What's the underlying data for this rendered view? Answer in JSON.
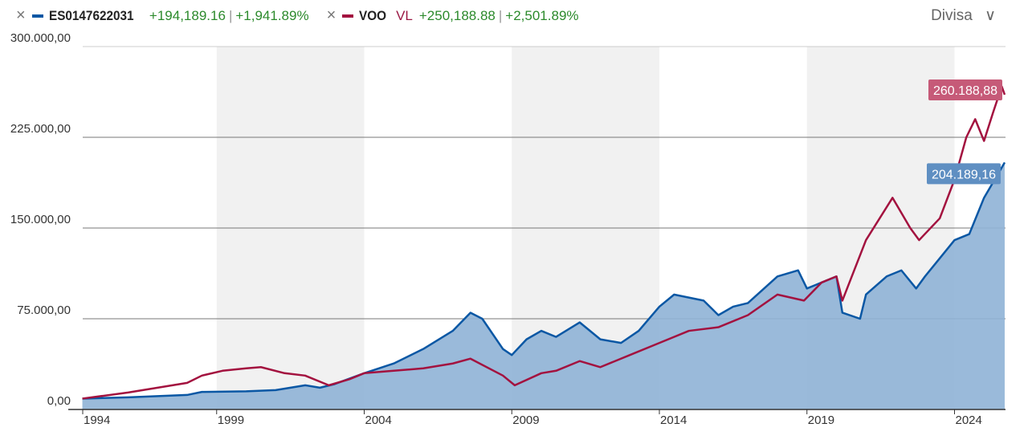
{
  "legend": [
    {
      "remove_icon": "×",
      "name": "ES0147622031",
      "suffix": "",
      "change": "+194,189.16",
      "pct": "+1,941.89%",
      "color": "#0a57a4"
    },
    {
      "remove_icon": "×",
      "name": "VOO",
      "suffix": "VL",
      "change": "+250,188.88",
      "pct": "+2,501.89%",
      "color": "#a3123f"
    }
  ],
  "currency_button": "Divisa",
  "chart_data": {
    "type": "line",
    "xlabel": "",
    "ylabel": "",
    "xlim": [
      1994.0,
      2025.7
    ],
    "ylim": [
      0,
      300000
    ],
    "yticks": [
      {
        "v": 0,
        "label": "0,00"
      },
      {
        "v": 75000,
        "label": "75.000,00"
      },
      {
        "v": 150000,
        "label": "150.000,00"
      },
      {
        "v": 225000,
        "label": "225.000,00"
      },
      {
        "v": 300000,
        "label": "300.000,00"
      }
    ],
    "xticks": [
      {
        "v": 1994,
        "label": "1994"
      },
      {
        "v": 1999,
        "label": "1999"
      },
      {
        "v": 2004,
        "label": "2004"
      },
      {
        "v": 2009,
        "label": "2009"
      },
      {
        "v": 2014,
        "label": "2014"
      },
      {
        "v": 2019,
        "label": "2019"
      },
      {
        "v": 2024,
        "label": "2024"
      }
    ],
    "shaded_bands": [
      [
        1999,
        2004
      ],
      [
        2009,
        2014
      ],
      [
        2019,
        2024
      ]
    ],
    "series": [
      {
        "name": "ES0147622031",
        "color": "#0a57a4",
        "fill": "#8fb3d6",
        "end_label": "204.189,16",
        "label_color": "#5f8fc2",
        "x": [
          1994.45,
          1996,
          1998,
          1998.5,
          2000,
          2001,
          2002,
          2002.5,
          2003,
          2004,
          2005,
          2006,
          2007,
          2007.6,
          2008,
          2008.7,
          2009,
          2009.5,
          2010,
          2010.5,
          2011.3,
          2012,
          2012.7,
          2013.3,
          2014,
          2014.5,
          2015.5,
          2016,
          2016.5,
          2017,
          2018,
          2018.7,
          2019,
          2019.5,
          2020,
          2020.2,
          2020.8,
          2021,
          2021.7,
          2022.2,
          2022.7,
          2023,
          2023.5,
          2024,
          2024.5,
          2025,
          2025.7
        ],
        "y": [
          9000,
          10000,
          12000,
          14500,
          15000,
          16000,
          20000,
          18000,
          21000,
          30000,
          38000,
          50000,
          65000,
          80000,
          75000,
          50000,
          45000,
          58000,
          65000,
          60000,
          72000,
          58000,
          55000,
          65000,
          85000,
          95000,
          90000,
          78000,
          85000,
          88000,
          110000,
          115000,
          100000,
          105000,
          110000,
          80000,
          75000,
          95000,
          110000,
          115000,
          100000,
          110000,
          125000,
          140000,
          145000,
          175000,
          204189
        ]
      },
      {
        "name": "VOO",
        "color": "#a3123f",
        "end_label": "260.188,88",
        "label_color": "#c65a78",
        "x": [
          1994.45,
          1996,
          1998,
          1998.5,
          1999.2,
          2000,
          2000.5,
          2001.3,
          2002,
          2002.8,
          2003.5,
          2004,
          2005,
          2006,
          2007,
          2007.6,
          2008.7,
          2009.1,
          2010,
          2010.5,
          2011.3,
          2012,
          2013,
          2014,
          2015,
          2016,
          2017,
          2018,
          2018.9,
          2019.5,
          2020,
          2020.2,
          2021,
          2021.9,
          2022.5,
          2022.8,
          2023.5,
          2024,
          2024.4,
          2024.7,
          2025.0,
          2025.3,
          2025.6,
          2025.7
        ],
        "y": [
          9000,
          14000,
          22000,
          28000,
          32000,
          34000,
          35000,
          30000,
          28000,
          20000,
          25000,
          30000,
          32000,
          34000,
          38000,
          42000,
          28000,
          20000,
          30000,
          32000,
          40000,
          35000,
          45000,
          55000,
          65000,
          68000,
          78000,
          95000,
          90000,
          105000,
          110000,
          90000,
          140000,
          175000,
          150000,
          140000,
          158000,
          190000,
          225000,
          240000,
          222000,
          245000,
          267000,
          260189
        ]
      }
    ]
  }
}
